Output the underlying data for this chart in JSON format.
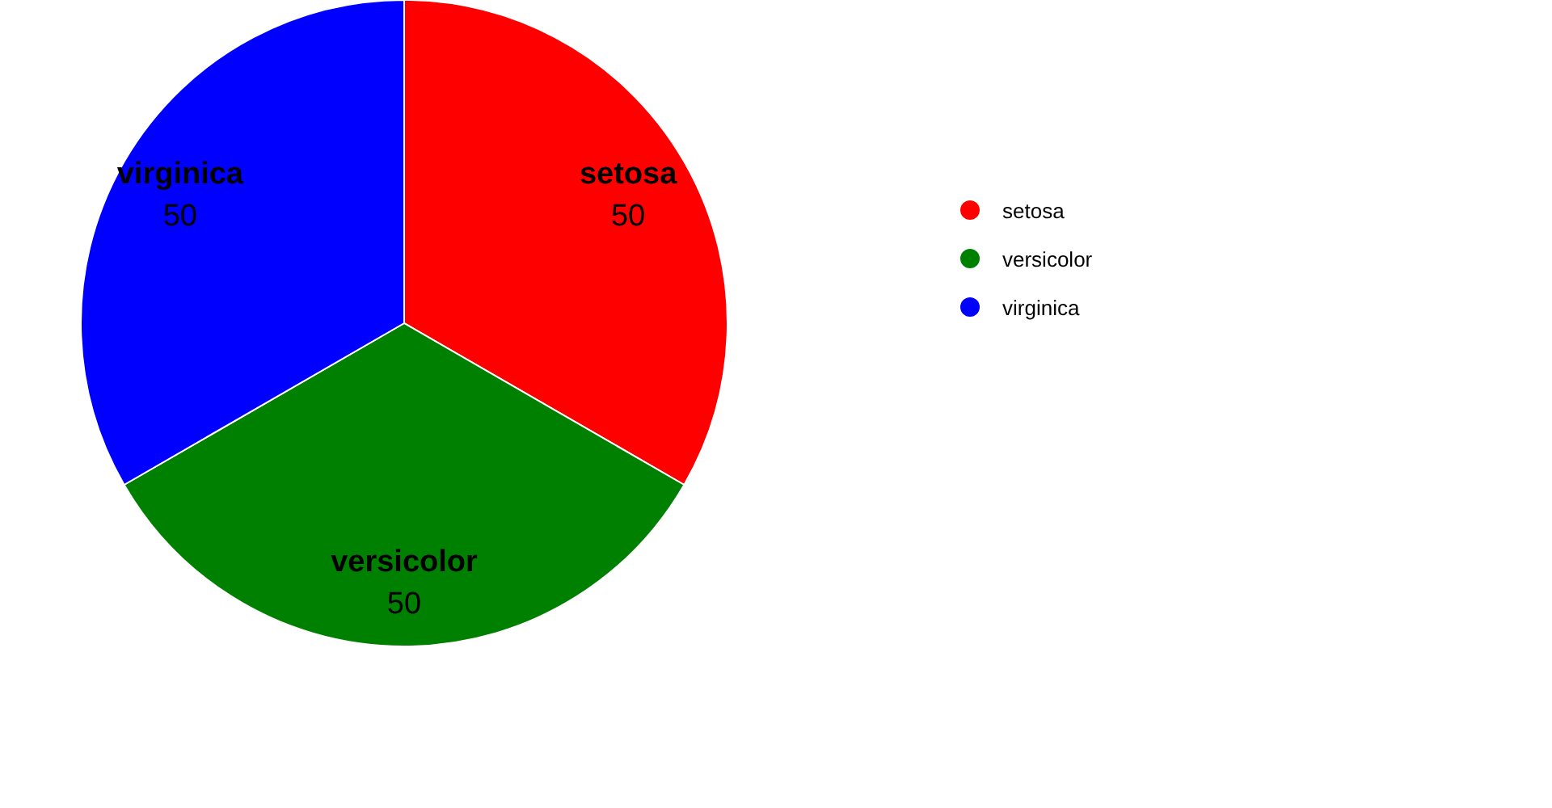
{
  "chart_data": {
    "type": "pie",
    "categories": [
      "setosa",
      "versicolor",
      "virginica"
    ],
    "values": [
      50,
      50,
      50
    ],
    "colors": [
      "#ff0000",
      "#008000",
      "#0000ff"
    ],
    "legend": "right",
    "data_labels": true
  }
}
